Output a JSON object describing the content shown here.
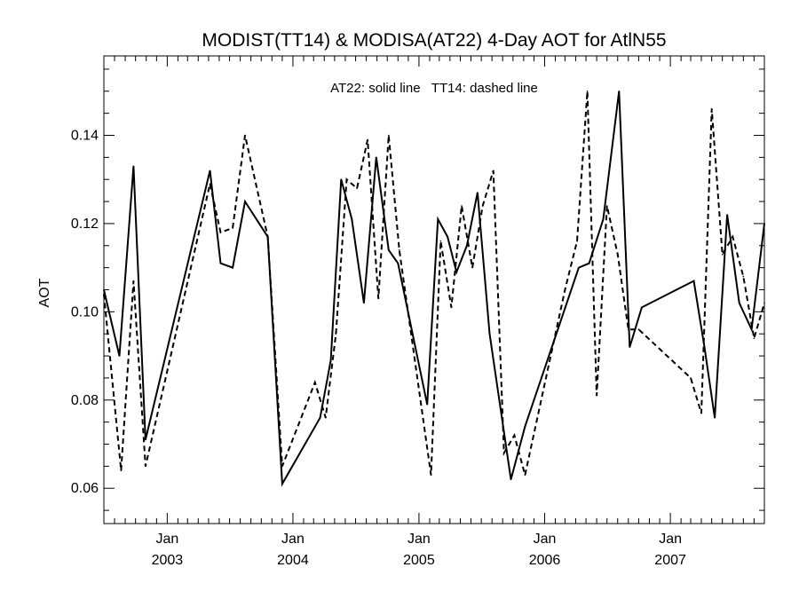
{
  "chart_data": {
    "type": "line",
    "title": "MODIST(TT14) & MODISA(AT22) 4-Day AOT for AtlN55",
    "xlabel": "",
    "ylabel": "AOT",
    "annotation": "AT22: solid line   TT14: dashed line",
    "xlim": [
      "2002-07-01",
      "2007-10-01"
    ],
    "ylim": [
      0.052,
      0.158
    ],
    "grid": false,
    "y_ticks": [
      0.06,
      0.08,
      0.1,
      0.12,
      0.14
    ],
    "y_tick_labels": [
      "0.06",
      "0.08",
      "0.10",
      "0.12",
      "0.14"
    ],
    "x_ticks": [
      {
        "date": "2003-01-01",
        "month": "Jan",
        "year": "2003"
      },
      {
        "date": "2004-01-01",
        "month": "Jan",
        "year": "2004"
      },
      {
        "date": "2005-01-01",
        "month": "Jan",
        "year": "2005"
      },
      {
        "date": "2006-01-01",
        "month": "Jan",
        "year": "2006"
      },
      {
        "date": "2007-01-01",
        "month": "Jan",
        "year": "2007"
      }
    ],
    "series": [
      {
        "name": "AT22",
        "style": "solid",
        "color": "#000000",
        "x": [
          "2002-07-01",
          "2002-08-15",
          "2002-09-25",
          "2002-10-30",
          "2003-05-05",
          "2003-06-05",
          "2003-07-10",
          "2003-08-15",
          "2003-10-20",
          "2003-12-01",
          "2004-03-20",
          "2004-04-20",
          "2004-05-20",
          "2004-06-20",
          "2004-07-25",
          "2004-08-30",
          "2004-10-05",
          "2004-11-01",
          "2005-01-25",
          "2005-02-25",
          "2005-03-25",
          "2005-04-20",
          "2005-05-20",
          "2005-06-20",
          "2005-07-25",
          "2005-09-25",
          "2005-11-05",
          "2006-04-10",
          "2006-05-10",
          "2006-06-20",
          "2006-08-05",
          "2006-09-05",
          "2006-10-10",
          "2007-03-10",
          "2007-04-10",
          "2007-05-10",
          "2007-06-15",
          "2007-07-20",
          "2007-08-25",
          "2007-10-01"
        ],
        "values": [
          0.105,
          0.09,
          0.133,
          0.071,
          0.132,
          0.111,
          0.11,
          0.125,
          0.117,
          0.061,
          0.076,
          0.089,
          0.13,
          0.121,
          0.102,
          0.135,
          0.114,
          0.111,
          0.079,
          0.121,
          0.117,
          0.109,
          0.115,
          0.127,
          0.095,
          0.062,
          0.074,
          0.11,
          0.111,
          0.121,
          0.15,
          0.092,
          0.101,
          0.107,
          0.092,
          0.076,
          0.122,
          0.102,
          0.096,
          0.12
        ]
      },
      {
        "name": "TT14",
        "style": "dashed",
        "color": "#000000",
        "x": [
          "2002-07-01",
          "2002-08-20",
          "2002-09-25",
          "2002-10-30",
          "2003-05-05",
          "2003-06-05",
          "2003-07-10",
          "2003-08-15",
          "2003-10-20",
          "2003-12-01",
          "2004-03-05",
          "2004-04-05",
          "2004-05-05",
          "2004-06-05",
          "2004-07-05",
          "2004-08-05",
          "2004-09-05",
          "2004-10-05",
          "2004-11-05",
          "2005-02-05",
          "2005-03-05",
          "2005-04-05",
          "2005-05-05",
          "2005-06-05",
          "2005-07-05",
          "2005-08-05",
          "2005-09-05",
          "2005-10-05",
          "2005-11-05",
          "2006-03-01",
          "2006-04-05",
          "2006-05-05",
          "2006-06-01",
          "2006-07-01",
          "2006-08-01",
          "2006-09-01",
          "2006-10-01",
          "2007-03-01",
          "2007-04-01",
          "2007-05-01",
          "2007-06-01",
          "2007-07-01",
          "2007-08-01",
          "2007-09-01",
          "2007-10-01"
        ],
        "values": [
          0.104,
          0.064,
          0.107,
          0.065,
          0.129,
          0.118,
          0.119,
          0.14,
          0.117,
          0.065,
          0.084,
          0.076,
          0.095,
          0.13,
          0.128,
          0.139,
          0.103,
          0.14,
          0.114,
          0.063,
          0.116,
          0.101,
          0.124,
          0.11,
          0.124,
          0.132,
          0.068,
          0.072,
          0.063,
          0.105,
          0.116,
          0.15,
          0.081,
          0.124,
          0.113,
          0.096,
          0.096,
          0.085,
          0.077,
          0.146,
          0.113,
          0.117,
          0.108,
          0.094,
          0.102
        ]
      }
    ]
  }
}
